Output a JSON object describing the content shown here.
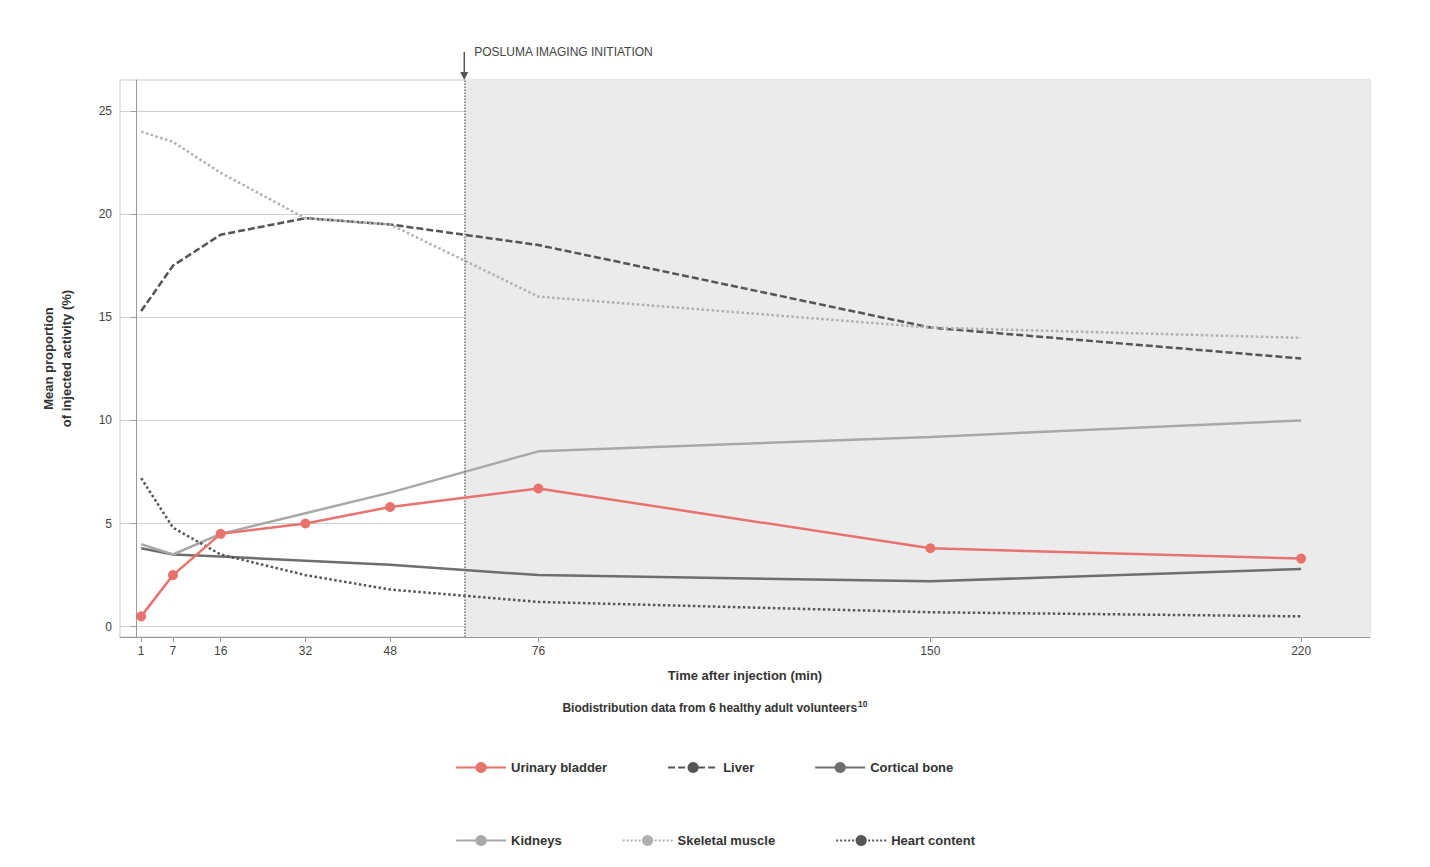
{
  "chart_data": {
    "type": "line",
    "x": [
      1,
      7,
      16,
      32,
      48,
      76,
      150,
      220
    ],
    "series": [
      {
        "name": "Urinary bladder",
        "color": "#e8736e",
        "line_style": "solid",
        "marker": "circle",
        "values": [
          0.5,
          2.5,
          4.5,
          5.0,
          5.8,
          6.7,
          3.8,
          3.3
        ]
      },
      {
        "name": "Liver",
        "color": "#555555",
        "line_style": "dashed",
        "values": [
          15.3,
          17.5,
          19.0,
          19.8,
          19.5,
          18.5,
          14.5,
          13.0
        ]
      },
      {
        "name": "Cortical bone",
        "color": "#6e6e6e",
        "line_style": "solid",
        "values": [
          3.8,
          3.5,
          3.4,
          3.2,
          3.0,
          2.5,
          2.2,
          2.8
        ]
      },
      {
        "name": "Kidneys",
        "color": "#a8a8a8",
        "line_style": "solid",
        "values": [
          4.0,
          3.5,
          4.5,
          5.5,
          6.5,
          8.5,
          9.2,
          10.0
        ]
      },
      {
        "name": "Skeletal muscle",
        "color": "#b0b0b0",
        "line_style": "dotted",
        "values": [
          24.0,
          23.5,
          22.0,
          19.8,
          19.5,
          16.0,
          14.5,
          14.0
        ]
      },
      {
        "name": "Heart content",
        "color": "#555555",
        "line_style": "dotted",
        "values": [
          7.2,
          4.8,
          3.5,
          2.5,
          1.8,
          1.2,
          0.7,
          0.5
        ]
      }
    ],
    "xlabel": "Time after injection (min)",
    "ylabel": "Mean proportion\nof injected activity (%)",
    "subtitle": "Biodistribution data from 6 healthy adult volunteers",
    "subtitle_superscript": "10",
    "annotation": {
      "text": "POSLUMA IMAGING INITIATION",
      "x": 62,
      "color": "#777777"
    },
    "shaded_region": {
      "start": 62,
      "end": 235,
      "color": "#ebebeb"
    },
    "xlim": [
      -3,
      233
    ],
    "ylim": [
      -0.5,
      26.5
    ],
    "xticks": [
      1,
      7,
      16,
      32,
      48,
      76,
      150,
      220
    ],
    "yticks": [
      0,
      5,
      10,
      15,
      20,
      25
    ],
    "grid": true,
    "legend": "bottom"
  }
}
